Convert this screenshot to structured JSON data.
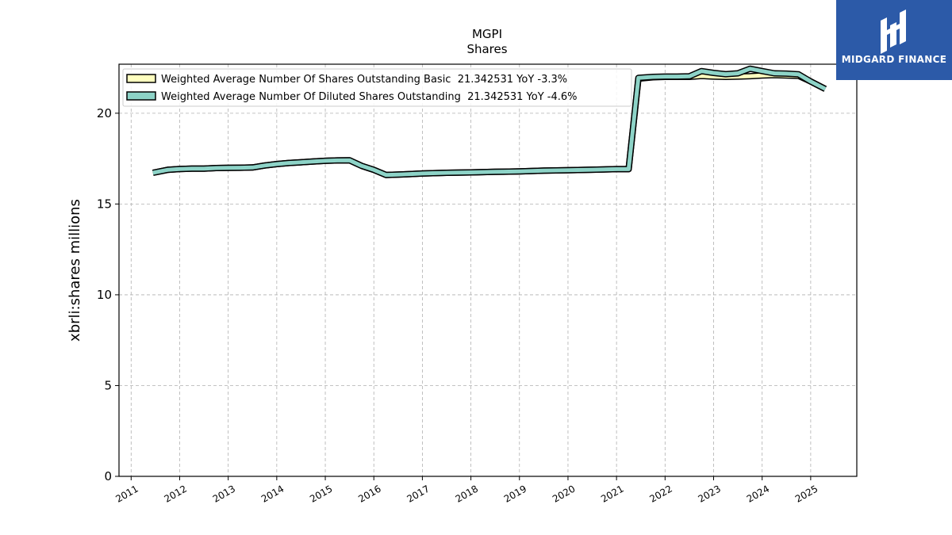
{
  "brand": {
    "name": "MIDGARD FINANCE",
    "background": "#2c5aa8"
  },
  "chart_data": {
    "type": "line",
    "title": "MGPI",
    "subtitle": "Shares",
    "xlabel": "",
    "ylabel": "xbrli:shares millions",
    "xlim": [
      2010.75,
      2025.95
    ],
    "ylim": [
      0,
      22.7
    ],
    "yticks": [
      0,
      5,
      10,
      15,
      20
    ],
    "xticks": [
      "2011",
      "2012",
      "2013",
      "2014",
      "2015",
      "2016",
      "2017",
      "2018",
      "2019",
      "2020",
      "2021",
      "2022",
      "2023",
      "2024",
      "2025"
    ],
    "grid": true,
    "legend_position": "top-left",
    "series": [
      {
        "name": "Weighted Average Number Of Shares Outstanding Basic  21.342531 YoY -3.3%",
        "color": "#ffffbf",
        "x": [
          2011.45,
          2011.75,
          2012.0,
          2012.25,
          2012.5,
          2012.75,
          2013.0,
          2013.25,
          2013.5,
          2013.75,
          2014.0,
          2014.25,
          2014.5,
          2014.75,
          2015.0,
          2015.25,
          2015.5,
          2015.75,
          2016.0,
          2016.25,
          2016.5,
          2016.75,
          2017.0,
          2017.5,
          2018.0,
          2018.5,
          2019.0,
          2019.5,
          2020.0,
          2020.5,
          2021.0,
          2021.25,
          2021.45,
          2021.75,
          2022.0,
          2022.25,
          2022.5,
          2022.75,
          2023.0,
          2023.25,
          2023.5,
          2023.75,
          2024.0,
          2024.25,
          2024.5,
          2024.75,
          2025.0,
          2025.3
        ],
        "values": [
          16.72,
          16.88,
          16.93,
          16.95,
          16.95,
          16.98,
          16.99,
          17.0,
          17.01,
          17.12,
          17.2,
          17.26,
          17.3,
          17.34,
          17.38,
          17.4,
          17.41,
          17.1,
          16.88,
          16.6,
          16.62,
          16.65,
          16.68,
          16.72,
          16.74,
          16.77,
          16.8,
          16.84,
          16.86,
          16.89,
          16.92,
          16.92,
          21.9,
          21.98,
          22.0,
          22.0,
          22.0,
          22.05,
          22.02,
          22.0,
          22.02,
          22.04,
          22.08,
          22.1,
          22.08,
          22.06,
          21.75,
          21.34
        ]
      },
      {
        "name": "Weighted Average Number Of Diluted Shares Outstanding  21.342531 YoY -4.6%",
        "color": "#8dd3c7",
        "x": [
          2011.45,
          2011.75,
          2012.0,
          2012.25,
          2012.5,
          2012.75,
          2013.0,
          2013.25,
          2013.5,
          2013.75,
          2014.0,
          2014.25,
          2014.5,
          2014.75,
          2015.0,
          2015.25,
          2015.5,
          2015.75,
          2016.0,
          2016.25,
          2016.5,
          2016.75,
          2017.0,
          2017.5,
          2018.0,
          2018.5,
          2019.0,
          2019.5,
          2020.0,
          2020.5,
          2021.0,
          2021.25,
          2021.45,
          2021.75,
          2022.0,
          2022.25,
          2022.5,
          2022.75,
          2023.0,
          2023.25,
          2023.5,
          2023.75,
          2024.0,
          2024.25,
          2024.5,
          2024.75,
          2025.0,
          2025.3
        ],
        "values": [
          16.72,
          16.88,
          16.93,
          16.95,
          16.95,
          16.98,
          16.99,
          17.0,
          17.01,
          17.12,
          17.2,
          17.26,
          17.3,
          17.34,
          17.38,
          17.4,
          17.41,
          17.1,
          16.88,
          16.6,
          16.62,
          16.65,
          16.68,
          16.72,
          16.74,
          16.77,
          16.8,
          16.84,
          16.86,
          16.89,
          16.92,
          16.92,
          21.95,
          22.0,
          22.02,
          22.02,
          22.03,
          22.32,
          22.22,
          22.15,
          22.2,
          22.45,
          22.32,
          22.2,
          22.18,
          22.14,
          21.75,
          21.34
        ]
      }
    ]
  }
}
